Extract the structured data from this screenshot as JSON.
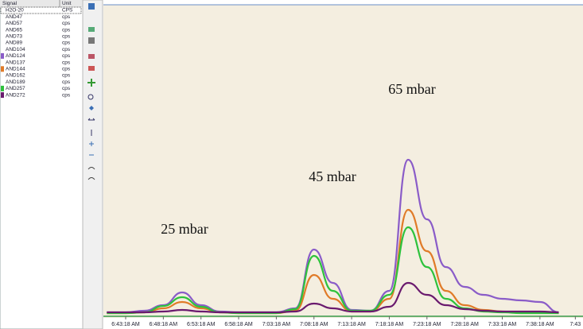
{
  "signal_table": {
    "headers": [
      "Signal",
      "Unit"
    ],
    "rows": [
      [
        "H2O-20",
        "CPS"
      ],
      [
        "AND47",
        "cps"
      ],
      [
        "AND57",
        "cps"
      ],
      [
        "AND65",
        "cps"
      ],
      [
        "AND73",
        "cps"
      ],
      [
        "AND89",
        "cps"
      ],
      [
        "AND104",
        "cps"
      ],
      [
        "AND124",
        "cps"
      ],
      [
        "AND137",
        "cps"
      ],
      [
        "AND144",
        "cps"
      ],
      [
        "AND162",
        "cps"
      ],
      [
        "AND189",
        "cps"
      ],
      [
        "AND257",
        "cps"
      ],
      [
        "AND272",
        "cps"
      ]
    ]
  },
  "chart_data": {
    "type": "line",
    "annotations": [
      "25 mbar",
      "45 mbar",
      "65 mbar"
    ],
    "xticks": [
      "6:43:18 AM",
      "6:48:18 AM",
      "6:53:18 AM",
      "6:58:18 AM",
      "7:03:18 AM",
      "7:08:18 AM",
      "7:13:18 AM",
      "7:18:18 AM",
      "7:23:18 AM",
      "7:28:18 AM",
      "7:33:18 AM",
      "7:38:18 AM",
      "7:43"
    ],
    "x": [
      "6:40:48 AM",
      "6:43:18 AM",
      "6:45:48 AM",
      "6:48:18 AM",
      "6:50:48 AM",
      "6:53:18 AM",
      "6:55:48 AM",
      "6:58:18 AM",
      "7:00:48 AM",
      "7:03:18 AM",
      "7:05:48 AM",
      "7:08:18 AM",
      "7:10:48 AM",
      "7:13:18 AM",
      "7:15:48 AM",
      "7:18:18 AM",
      "7:20:48 AM",
      "7:23:18 AM",
      "7:25:48 AM",
      "7:28:18 AM",
      "7:30:48 AM",
      "7:33:18 AM",
      "7:35:48 AM",
      "7:38:18 AM",
      "7:40:48 AM"
    ],
    "series": [
      {
        "name": "AND124",
        "color": "#8a5cc8",
        "values": [
          3,
          3,
          5,
          12,
          28,
          12,
          4,
          3,
          3,
          3,
          8,
          82,
          40,
          6,
          5,
          30,
          195,
          120,
          60,
          35,
          25,
          20,
          18,
          16,
          3
        ]
      },
      {
        "name": "AND144",
        "color": "#e07b28",
        "values": [
          2,
          2,
          3,
          8,
          16,
          8,
          3,
          2,
          2,
          2,
          5,
          50,
          20,
          4,
          4,
          20,
          132,
          80,
          30,
          12,
          6,
          4,
          3,
          3,
          2
        ]
      },
      {
        "name": "AND257",
        "color": "#2ec23c",
        "values": [
          2,
          2,
          3,
          11,
          22,
          10,
          3,
          2,
          2,
          2,
          7,
          74,
          30,
          5,
          5,
          25,
          110,
          60,
          20,
          8,
          4,
          3,
          2,
          2,
          2
        ]
      },
      {
        "name": "AND272",
        "color": "#6a1a6e",
        "values": [
          3,
          3,
          3,
          4,
          6,
          4,
          3,
          3,
          3,
          3,
          4,
          14,
          8,
          4,
          4,
          10,
          40,
          25,
          12,
          7,
          5,
          4,
          4,
          4,
          3
        ]
      }
    ]
  }
}
